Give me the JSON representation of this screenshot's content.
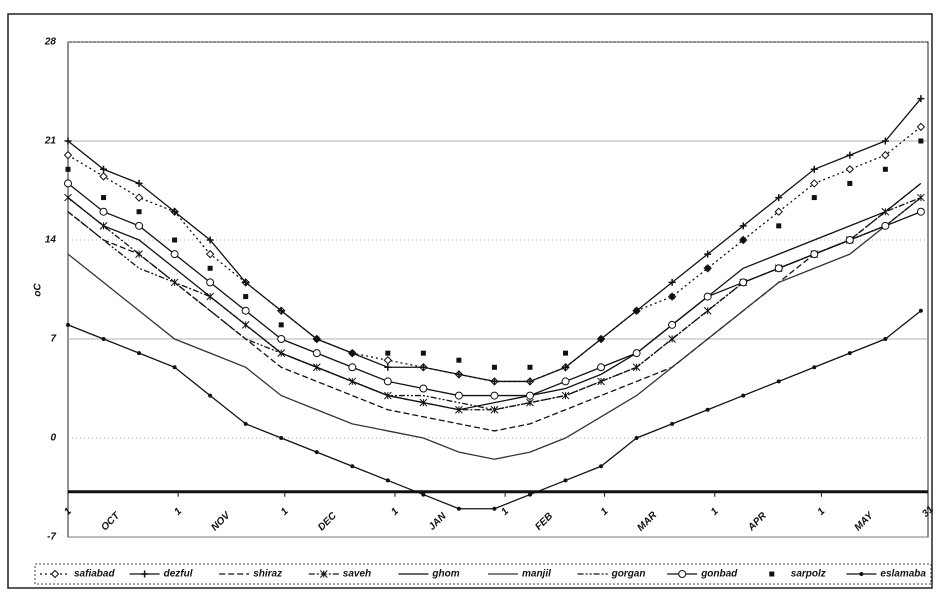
{
  "chart_data": {
    "type": "line",
    "y_label": "oC",
    "xlim": [
      0,
      242
    ],
    "ylim": [
      -7,
      28
    ],
    "yticks": [
      -7,
      0,
      7,
      14,
      21,
      28
    ],
    "xticks": [
      {
        "value": 0,
        "label": "1"
      },
      {
        "value": 31,
        "label": "1"
      },
      {
        "value": 61,
        "label": "1"
      },
      {
        "value": 92,
        "label": "1"
      },
      {
        "value": 123,
        "label": "1"
      },
      {
        "value": 151,
        "label": "1"
      },
      {
        "value": 182,
        "label": "1"
      },
      {
        "value": 212,
        "label": "1"
      },
      {
        "value": 242,
        "label": "31"
      }
    ],
    "month_labels": [
      {
        "value": 12,
        "label": "OCT"
      },
      {
        "value": 43,
        "label": "NOV"
      },
      {
        "value": 73,
        "label": "DEC"
      },
      {
        "value": 104,
        "label": "JAN"
      },
      {
        "value": 134,
        "label": "FEB"
      },
      {
        "value": 163,
        "label": "MAR"
      },
      {
        "value": 194,
        "label": "APR"
      },
      {
        "value": 224,
        "label": "MAY"
      }
    ],
    "x_axis_at": -3.8,
    "grid": true,
    "x": [
      0,
      10,
      20,
      30,
      40,
      50,
      60,
      70,
      80,
      90,
      100,
      110,
      120,
      130,
      140,
      150,
      160,
      170,
      180,
      190,
      200,
      210,
      220,
      230,
      240
    ],
    "series": [
      {
        "name": "safiabad",
        "color": "#111111",
        "dash": "2,3",
        "marker": "diamond",
        "values": [
          20,
          18.5,
          17,
          16,
          13,
          11,
          9,
          7,
          6,
          5.5,
          5,
          4.5,
          4,
          4,
          5,
          7,
          9,
          10,
          12,
          14,
          16,
          18,
          19,
          20,
          22
        ]
      },
      {
        "name": "dezful",
        "color": "#111111",
        "dash": "none",
        "marker": "plus",
        "values": [
          21,
          19,
          18,
          16,
          14,
          11,
          9,
          7,
          6,
          5,
          5,
          4.5,
          4,
          4,
          5,
          7,
          9,
          11,
          13,
          15,
          17,
          19,
          20,
          21,
          24
        ]
      },
      {
        "name": "shiraz",
        "color": "#111111",
        "dash": "6,3",
        "marker": "none",
        "values": [
          16,
          14,
          13,
          11,
          9,
          7,
          5,
          4,
          3,
          2,
          1.5,
          1,
          0.5,
          1,
          2,
          3,
          4,
          5,
          7,
          9,
          11,
          13,
          14,
          16,
          18
        ]
      },
      {
        "name": "saveh",
        "color": "#111111",
        "dash": "6,2,2,2",
        "marker": "star",
        "values": [
          17,
          15,
          13,
          11,
          10,
          8,
          6,
          5,
          4,
          3,
          2.5,
          2,
          2,
          2.5,
          3,
          4,
          5,
          7,
          9,
          11,
          12,
          13,
          14,
          16,
          17
        ]
      },
      {
        "name": "ghom",
        "color": "#111111",
        "dash": "none",
        "marker": "none",
        "values": [
          17,
          15,
          14,
          12,
          10,
          8,
          6,
          5,
          4,
          3,
          2.5,
          2,
          2.5,
          3,
          3.5,
          4.5,
          6,
          8,
          10,
          12,
          13,
          14,
          15,
          16,
          18
        ]
      },
      {
        "name": "manjil",
        "color": "#333333",
        "dash": "none",
        "marker": "none",
        "values": [
          13,
          11,
          9,
          7,
          6,
          5,
          3,
          2,
          1,
          0.5,
          0,
          -1,
          -1.5,
          -1,
          0,
          1.5,
          3,
          5,
          7,
          9,
          11,
          12,
          13,
          15,
          17
        ]
      },
      {
        "name": "gorgan",
        "color": "#111111",
        "dash": "6,2,2,2,2,2",
        "marker": "none",
        "values": [
          16,
          14,
          12,
          11,
          9,
          7,
          6,
          5,
          4,
          3,
          3,
          2.5,
          2,
          2.5,
          3,
          4,
          5,
          7,
          9,
          11,
          12,
          13,
          14,
          15,
          17
        ]
      },
      {
        "name": "gonbad",
        "color": "#111111",
        "dash": "none",
        "marker": "circle",
        "values": [
          18,
          16,
          15,
          13,
          11,
          9,
          7,
          6,
          5,
          4,
          3.5,
          3,
          3,
          3,
          4,
          5,
          6,
          8,
          10,
          11,
          12,
          13,
          14,
          15,
          16
        ]
      },
      {
        "name": "sarpolz",
        "color": "#111111",
        "dash": "hidden",
        "marker": "square",
        "values": [
          19,
          17,
          16,
          14,
          12,
          10,
          8,
          7,
          6,
          6,
          6,
          5.5,
          5,
          5,
          6,
          7,
          9,
          10,
          12,
          14,
          15,
          17,
          18,
          19,
          21
        ]
      },
      {
        "name": "eslamaba",
        "color": "#111111",
        "dash": "none",
        "marker": "dot",
        "values": [
          8,
          7,
          6,
          5,
          3,
          1,
          0,
          -1,
          -2,
          -3,
          -4,
          -5,
          -5,
          -4,
          -3,
          -2,
          0,
          1,
          2,
          3,
          4,
          5,
          6,
          7,
          9
        ]
      }
    ]
  }
}
